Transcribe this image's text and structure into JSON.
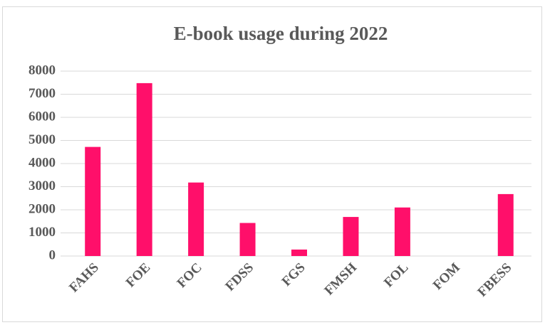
{
  "chart_data": {
    "type": "bar",
    "title": "E-book usage during 2022",
    "categories": [
      "FAHS",
      "FOE",
      "FOC",
      "FDSS",
      "FGS",
      "FMSH",
      "FOL",
      "FOM",
      "FBESS"
    ],
    "values": [
      4720,
      7480,
      3180,
      1430,
      280,
      1690,
      2100,
      0,
      2680
    ],
    "color": "#ff0f6a",
    "ylim": [
      0,
      8000
    ],
    "yticks": [
      0,
      1000,
      2000,
      3000,
      4000,
      5000,
      6000,
      7000,
      8000
    ],
    "grid": true
  }
}
